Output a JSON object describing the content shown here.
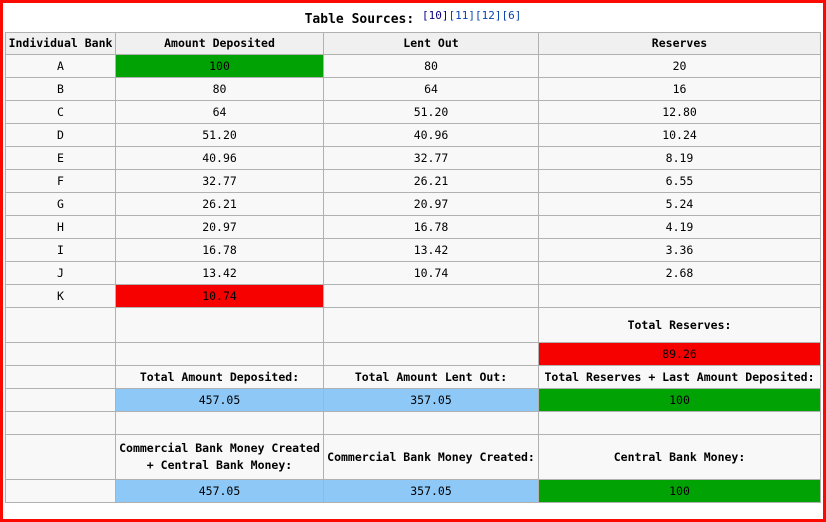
{
  "chart_data": {
    "type": "table",
    "title": "Table Sources:",
    "references": [
      "[10]",
      "[11]",
      "[12]",
      "[6]"
    ],
    "columns": [
      "Individual Bank",
      "Amount Deposited",
      "Lent Out",
      "Reserves"
    ],
    "rows": [
      {
        "bank": "A",
        "deposited": "100",
        "lent": "80",
        "reserves": "20",
        "highlight": "green"
      },
      {
        "bank": "B",
        "deposited": "80",
        "lent": "64",
        "reserves": "16",
        "highlight": null
      },
      {
        "bank": "C",
        "deposited": "64",
        "lent": "51.20",
        "reserves": "12.80",
        "highlight": null
      },
      {
        "bank": "D",
        "deposited": "51.20",
        "lent": "40.96",
        "reserves": "10.24",
        "highlight": null
      },
      {
        "bank": "E",
        "deposited": "40.96",
        "lent": "32.77",
        "reserves": "8.19",
        "highlight": null
      },
      {
        "bank": "F",
        "deposited": "32.77",
        "lent": "26.21",
        "reserves": "6.55",
        "highlight": null
      },
      {
        "bank": "G",
        "deposited": "26.21",
        "lent": "20.97",
        "reserves": "5.24",
        "highlight": null
      },
      {
        "bank": "H",
        "deposited": "20.97",
        "lent": "16.78",
        "reserves": "4.19",
        "highlight": null
      },
      {
        "bank": "I",
        "deposited": "16.78",
        "lent": "13.42",
        "reserves": "3.36",
        "highlight": null
      },
      {
        "bank": "J",
        "deposited": "13.42",
        "lent": "10.74",
        "reserves": "2.68",
        "highlight": null
      },
      {
        "bank": "K",
        "deposited": "10.74",
        "lent": "",
        "reserves": "",
        "highlight": "red"
      }
    ],
    "totals": {
      "total_reserves_label": "Total Reserves:",
      "total_reserves_value": "89.26",
      "total_deposited_label": "Total Amount Deposited:",
      "total_deposited_value": "457.05",
      "total_lent_label": "Total Amount Lent Out:",
      "total_lent_value": "357.05",
      "reserves_plus_last_label": "Total Reserves + Last Amount Deposited:",
      "reserves_plus_last_value": "100",
      "commercial_plus_central_label": "Commercial Bank Money Created + Central Bank Money:",
      "commercial_plus_central_value": "457.05",
      "commercial_created_label": "Commercial Bank Money Created:",
      "commercial_created_value": "357.05",
      "central_label": "Central Bank Money:",
      "central_value": "100"
    },
    "colors": {
      "highlight_green": "#00a303",
      "highlight_red": "#f60000",
      "highlight_blue": "#8dc8f7",
      "frame_red": "#fa0a00",
      "cell_background": "#f8f8f8",
      "header_background": "#f0f0f0",
      "grid_border": "#b1b1b1",
      "link_blue": "#0645ad",
      "link_visited_blue": "#0b0080"
    },
    "layout": {
      "grid": true,
      "legend": false
    }
  }
}
